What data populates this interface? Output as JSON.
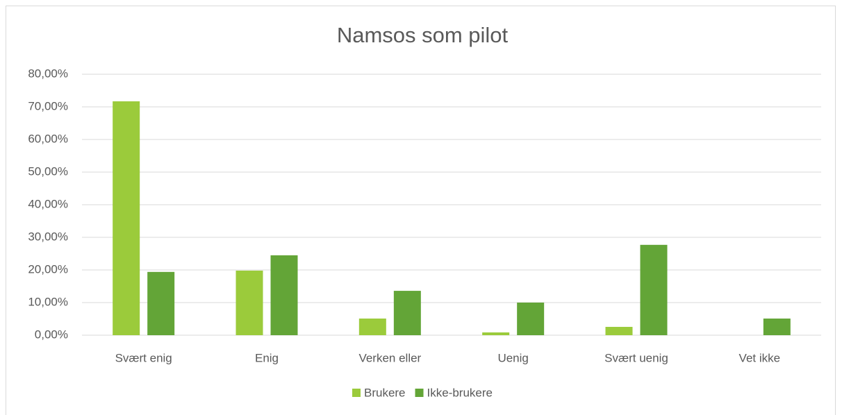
{
  "chart_data": {
    "type": "bar",
    "title": "Namsos som pilot",
    "categories": [
      "Svært enig",
      "Enig",
      "Verken eller",
      "Uenig",
      "Svært uenig",
      "Vet ikke"
    ],
    "series": [
      {
        "name": "Brukere",
        "color": "#9bcb3b",
        "values": [
          71.7,
          19.8,
          5.1,
          0.85,
          2.55,
          0
        ]
      },
      {
        "name": "Ikke-brukere",
        "color": "#63a537",
        "values": [
          19.4,
          24.5,
          13.6,
          10.0,
          27.7,
          5.1
        ]
      }
    ],
    "ylim": [
      0,
      80
    ],
    "yticks": [
      {
        "value": 0,
        "label": "0,00%"
      },
      {
        "value": 10,
        "label": "10,00%"
      },
      {
        "value": 20,
        "label": "20,00%"
      },
      {
        "value": 30,
        "label": "30,00%"
      },
      {
        "value": 40,
        "label": "40,00%"
      },
      {
        "value": 50,
        "label": "50,00%"
      },
      {
        "value": 60,
        "label": "60,00%"
      },
      {
        "value": 70,
        "label": "70,00%"
      },
      {
        "value": 80,
        "label": "80,00%"
      }
    ],
    "grid": true,
    "legend": "bottom"
  }
}
